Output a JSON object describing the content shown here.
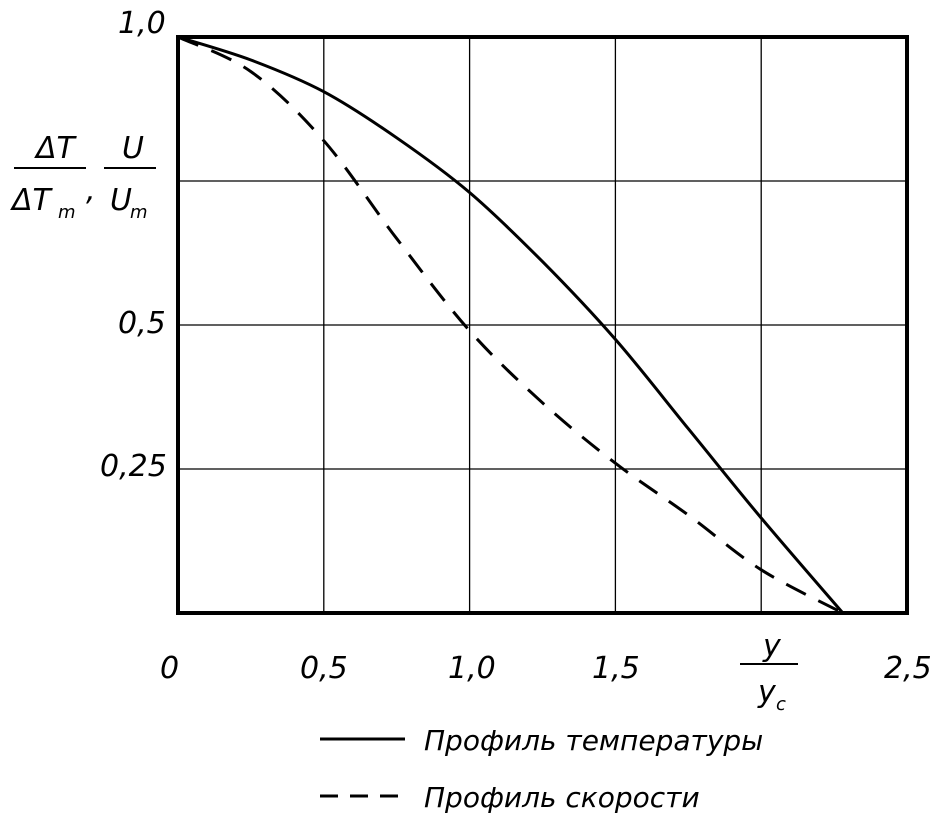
{
  "chart_data": {
    "type": "line",
    "x": [
      0,
      0.25,
      0.5,
      0.75,
      1.0,
      1.25,
      1.5,
      1.75,
      2.0,
      2.28
    ],
    "xlim": [
      0,
      2.5
    ],
    "ylim": [
      0,
      1.0
    ],
    "x_ticks": [
      "0",
      "0,5",
      "1,0",
      "1,5",
      "2,5"
    ],
    "y_ticks": [
      "1,0",
      "0,5",
      "0,25"
    ],
    "grid": true,
    "legend_position": "bottom-center",
    "ylabel": {
      "dt": "ΔT",
      "dtm": "ΔT",
      "dtm_sub": "m",
      "comma": ",",
      "u": "U",
      "um": "U",
      "um_sub": "m"
    },
    "xlabel": {
      "y": "y",
      "yc": "y",
      "yc_sub": "c"
    },
    "series": [
      {
        "name": "Профиль температуры",
        "style": "solid",
        "values": [
          1.0,
          0.96,
          0.905,
          0.825,
          0.73,
          0.61,
          0.475,
          0.32,
          0.165,
          0.0
        ]
      },
      {
        "name": "Профиль скорости",
        "style": "dashed",
        "values": [
          1.0,
          0.94,
          0.82,
          0.65,
          0.49,
          0.365,
          0.26,
          0.17,
          0.075,
          0.0
        ]
      }
    ]
  }
}
